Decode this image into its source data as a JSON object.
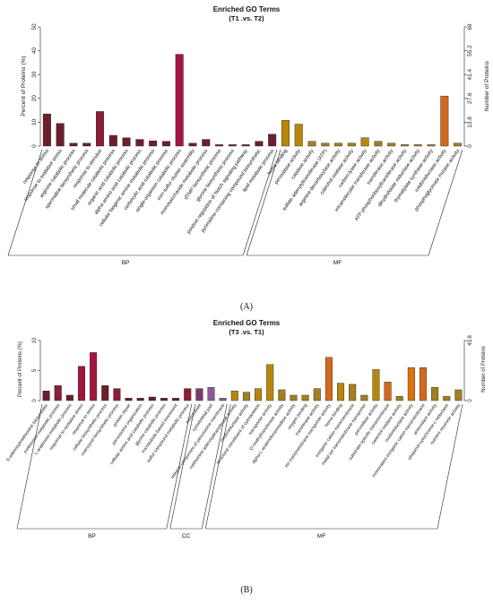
{
  "figure": {
    "panel_labels": [
      "(A)",
      "(B)"
    ]
  },
  "chart_data": [
    {
      "type": "bar",
      "title": "Enriched GO Terms",
      "subtitle": "(T1 .vs. T2)",
      "ylabel": "Percent of Proteins (%)",
      "ylabel_right": "Number of Proteins",
      "ylim": [
        0,
        50
      ],
      "yticks": [
        0,
        10,
        20,
        30,
        40,
        50
      ],
      "ylim_right": [
        0,
        69
      ],
      "yticks_right": [
        "0",
        "13.8",
        "27.6",
        "41.4",
        "55.2",
        "69"
      ],
      "categories": [
        "response to stress",
        "response to oxidative stress",
        "arginine catabolic process",
        "spermidine biosynthetic process",
        "response to stimulus",
        "small molecule catabolic process",
        "organic acid catabolic process",
        "alpha-amino acid catabolic process",
        "cellular biogenic amine metabolic process",
        "carboxylic acid catabolic process",
        "single-organism catabolic process",
        "iron-sulfur cluster assembly",
        "monosaccharide metabolic process",
        "dTMP biosynthetic process",
        "glycine biosynthetic process",
        "positive regulation of Notch signaling pathway",
        "pyrimidine-containing compound biosynthetic",
        "lipid metabolic process",
        "heme binding",
        "peroxidase activity",
        "catalase activity",
        "sulfate adenylyltransferase (ATP)",
        "arginine decarboxylase activity",
        "catechol oxidase activity",
        "carbon-lyase activity",
        "intramolecular transferase activity",
        "transferase activity",
        "ATP phosphoribosyltransferase activity",
        "dihydrofolate reductase activity",
        "thymidylate synthase activity",
        "oxidoreductase activity",
        "phosphoglycerate mutase activity"
      ],
      "values": [
        13.5,
        9.5,
        1.2,
        1.2,
        14.5,
        4.5,
        3.5,
        2.8,
        2.2,
        2.0,
        38.5,
        1.2,
        2.8,
        0.6,
        0.6,
        0.6,
        2.0,
        5.0,
        10.8,
        9.2,
        2.0,
        1.2,
        1.2,
        1.2,
        3.5,
        2.0,
        1.2,
        0.6,
        0.6,
        0.6,
        21.0,
        1.2
      ],
      "groups": [
        {
          "name": "BP",
          "count": 18
        },
        {
          "name": "MF",
          "count": 14
        }
      ],
      "colors": [
        "#6b1f2c",
        "#6b1f2c",
        "#6b1f2c",
        "#6b1f2c",
        "#8c1e3a",
        "#6b1f2c",
        "#6b1f2c",
        "#6b1f2c",
        "#6b1f2c",
        "#6b1f2c",
        "#a3163f",
        "#6b1f2c",
        "#6b1f2c",
        "#6b1f2c",
        "#6b1f2c",
        "#6b1f2c",
        "#6b1f2c",
        "#6b1f2c",
        "#b8860b",
        "#b8860b",
        "#a08020",
        "#a08020",
        "#a08020",
        "#a08020",
        "#b8860b",
        "#a08020",
        "#a08020",
        "#a08020",
        "#a08020",
        "#a08020",
        "#d2691e",
        "#a08020"
      ]
    },
    {
      "type": "bar",
      "title": "Enriched GO Terms",
      "subtitle": "(T3 .vs. T1)",
      "ylabel": "Percent of Proteins (%)",
      "ylabel_right": "Number of Proteins",
      "ylim": [
        0,
        10
      ],
      "yticks": [
        0,
        5,
        10
      ],
      "ylim_right": [
        0,
        43.8
      ],
      "yticks_right": [
        "0",
        "43.8"
      ],
      "categories": [
        "S-adenosylmethionine biosynthetic",
        "methionine metabolic process",
        "L-arabinose metabolic process",
        "response to oxidative stress",
        "response to stress",
        "cellular biosynthetic process",
        "coenzyme biosynthetic process",
        "protein repair",
        "peroxisome organization",
        "cellular amino acid catabolic process",
        "glycine catabolic process",
        "microtubule-based movement",
        "sulfur compound metabolic process",
        "microtubule",
        "cytoskeletal part",
        "integral component of peroxisome membrane",
        "methionine adenosyltransferase activity",
        "oxidoreductase activity",
        "structural constituent of cytoskeleton",
        "transporter activity",
        "O-methyltransferase activity",
        "alpha-L-arabinofuranosidase activity",
        "oxygen binding",
        "transferase activity",
        "ion transmembrane transporter activity",
        "heme binding",
        "inorganic cation transmembrane",
        "metal ion transmembrane transporter",
        "peroxidase activity",
        "substrate-specific transmembrane",
        "catechol oxidase activity",
        "oxidoreductase activity",
        "monovalent inorganic cation transmembrane",
        "antioxidant activity",
        "ubiquinol-cytochrome-c reductase",
        "nutrient reservoir activity"
      ],
      "values": [
        1.6,
        2.5,
        0.9,
        5.7,
        8.0,
        2.5,
        2.0,
        0.4,
        0.4,
        0.6,
        0.4,
        0.4,
        2.0,
        2.0,
        2.2,
        0.4,
        1.6,
        1.4,
        2.0,
        6.0,
        1.8,
        0.9,
        0.9,
        2.0,
        7.2,
        2.9,
        2.7,
        0.9,
        5.2,
        3.1,
        0.7,
        5.5,
        5.5,
        2.2,
        0.7,
        1.8
      ],
      "groups": [
        {
          "name": "BP",
          "count": 13
        },
        {
          "name": "CC",
          "count": 3
        },
        {
          "name": "MF",
          "count": 20
        }
      ],
      "colors": [
        "#6b1f2c",
        "#8c1e3a",
        "#6b1f2c",
        "#a3163f",
        "#a3163f",
        "#6b1f2c",
        "#8c1e3a",
        "#6b1f2c",
        "#6b1f2c",
        "#6b1f2c",
        "#6b1f2c",
        "#6b1f2c",
        "#8c1e3a",
        "#7a3b6e",
        "#8a5a9a",
        "#7a6b8a",
        "#b8860b",
        "#a08020",
        "#b8860b",
        "#b8860b",
        "#a08020",
        "#a08020",
        "#a08020",
        "#a08020",
        "#d2691e",
        "#b8860b",
        "#a08020",
        "#a08020",
        "#b8860b",
        "#d2691e",
        "#a08020",
        "#e07010",
        "#d2691e",
        "#a08020",
        "#a08020",
        "#a08020"
      ]
    }
  ]
}
